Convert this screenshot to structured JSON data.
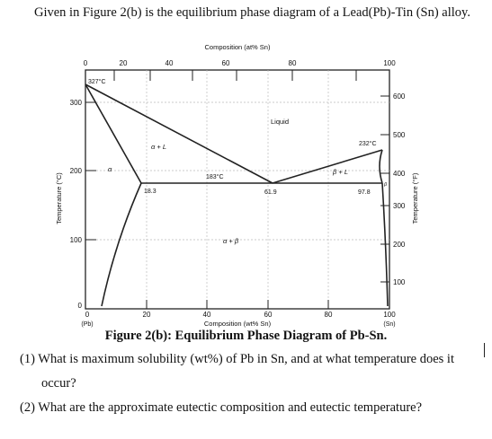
{
  "intro_text": "Given in Figure 2(b) is the equilibrium phase diagram of a Lead(Pb)-Tin (Sn) alloy.",
  "diagram": {
    "top_axis_title": "Composition (at% Sn)",
    "top_ticks": [
      "0",
      "20",
      "40",
      "60",
      "80",
      "100"
    ],
    "bottom_axis_title": "Composition (wt% Sn)",
    "bottom_ticks": [
      "0",
      "20",
      "40",
      "60",
      "80",
      "100"
    ],
    "bottom_end_labels": {
      "left": "(Pb)",
      "right": "(Sn)"
    },
    "left_axis_title": "Temperature (°C)",
    "left_ticks": [
      "0",
      "100",
      "200",
      "300"
    ],
    "right_axis_title": "Temperature (°F)",
    "right_ticks": [
      "600",
      "500",
      "400",
      "300",
      "200",
      "100"
    ],
    "labels": {
      "pb_melt": "327°C",
      "sn_melt": "232°C",
      "eutectic_temp": "183°C",
      "alpha_limit": "18.3",
      "eutectic_comp": "61.9",
      "beta_limit": "97.8",
      "liquid": "Liquid",
      "alpha_plus_l": "α + L",
      "beta_plus_l": "β + L",
      "alpha": "α",
      "beta": "β",
      "alpha_plus_beta": "α + β"
    },
    "colors": {
      "line": "#222222",
      "grid": "#bbbbbb"
    }
  },
  "caption": "Figure 2(b): Equilibrium Phase Diagram of Pb-Sn.",
  "questions": [
    "(1) What is maximum solubility (wt%) of Pb in Sn, and at what temperature does it",
    "occur?",
    "(2) What are the approximate eutectic composition and eutectic temperature?"
  ]
}
